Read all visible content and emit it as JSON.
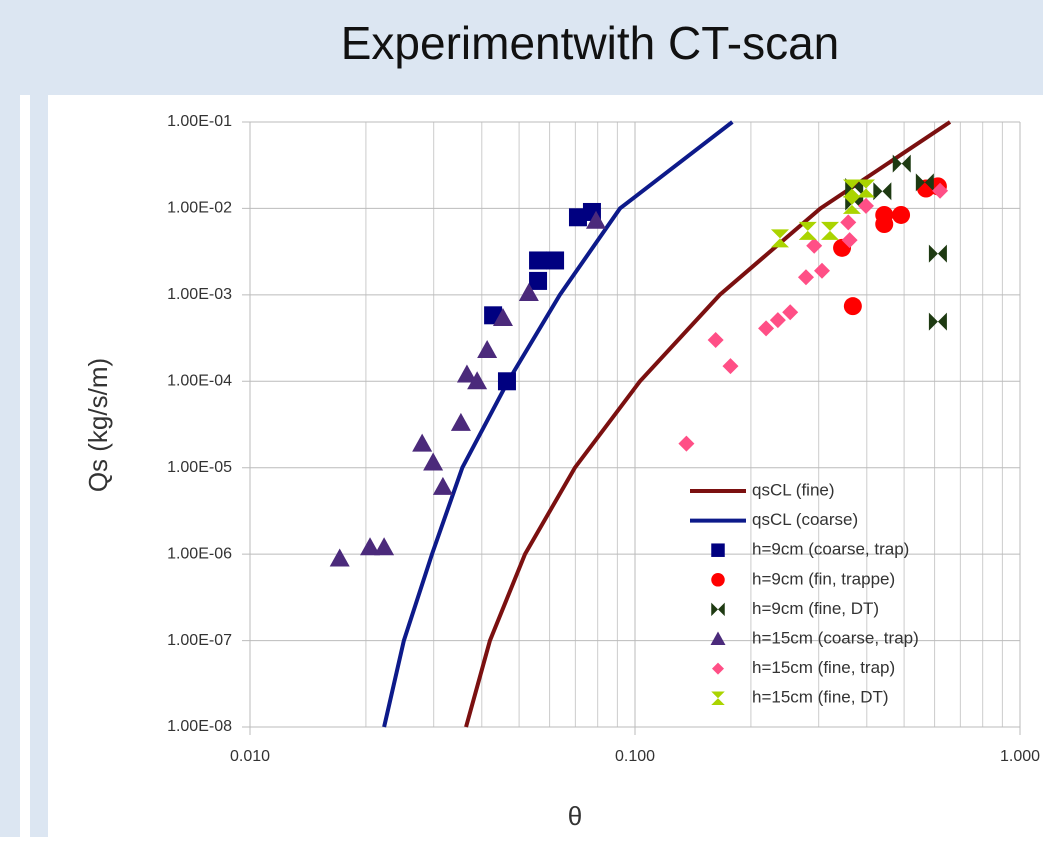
{
  "chart_data": {
    "type": "scatter",
    "title": "Experimentwith CT-scan",
    "xlabel": "θ",
    "ylabel": "Qs (kg/s/m)",
    "xscale": "log",
    "yscale": "log",
    "xlim": [
      0.01,
      1
    ],
    "ylim": [
      1e-08,
      0.1
    ],
    "xticks": [
      {
        "value": 0.01,
        "label": "0.010"
      },
      {
        "value": 0.1,
        "label": "0.100"
      },
      {
        "value": 1,
        "label": "1.000"
      }
    ],
    "yticks": [
      {
        "value": 1e-08,
        "label": "1.00E-08"
      },
      {
        "value": 1e-07,
        "label": "1.00E-07"
      },
      {
        "value": 1e-06,
        "label": "1.00E-06"
      },
      {
        "value": 1e-05,
        "label": "1.00E-05"
      },
      {
        "value": 0.0001,
        "label": "1.00E-04"
      },
      {
        "value": 0.001,
        "label": "1.00E-03"
      },
      {
        "value": 0.01,
        "label": "1.00E-02"
      },
      {
        "value": 0.1,
        "label": "1.00E-01"
      }
    ],
    "grid": true,
    "x_minor_grid": true,
    "legend": "lower right",
    "series": [
      {
        "name": "qsCL (fine)",
        "color": "#7b1010",
        "marker": "line",
        "x": [
          0.0364,
          0.042,
          0.0518,
          0.0698,
          0.103,
          0.166,
          0.303,
          0.658
        ],
        "values": [
          1e-08,
          1e-07,
          1e-06,
          1e-05,
          0.0001,
          0.001,
          0.01,
          0.1
        ]
      },
      {
        "name": "qsCL (coarse)",
        "color": "#0d1a8a",
        "marker": "line",
        "x": [
          0.0223,
          0.0251,
          0.0297,
          0.0356,
          0.0468,
          0.0638,
          0.0914,
          0.179
        ],
        "values": [
          1e-08,
          1e-07,
          1e-06,
          1e-05,
          0.0001,
          0.001,
          0.01,
          0.1
        ]
      },
      {
        "name": "h=9cm (coarse, trap)",
        "color": "#000080",
        "marker": "square",
        "x": [
          0.0711,
          0.0773,
          0.0428,
          0.0465,
          0.056,
          0.056,
          0.062
        ],
        "values": [
          0.0079,
          0.0091,
          0.00058,
          0.0001,
          0.00145,
          0.0025,
          0.0025
        ]
      },
      {
        "name": "h=9cm (fin, trappe)",
        "color": "#ff0000",
        "marker": "circle",
        "x": [
          0.368,
          0.345,
          0.444,
          0.444,
          0.491,
          0.57,
          0.612
        ],
        "values": [
          0.00074,
          0.0035,
          0.0066,
          0.0084,
          0.0084,
          0.017,
          0.018
        ]
      },
      {
        "name": "h=9cm (fine, DT)",
        "color": "#1e3a12",
        "marker": "bowtie",
        "x": [
          0.493,
          0.371,
          0.371,
          0.439,
          0.612,
          0.612,
          0.566
        ],
        "values": [
          0.033,
          0.0177,
          0.012,
          0.0158,
          0.003,
          0.00049,
          0.02
        ]
      },
      {
        "name": "h=15cm (coarse, trap)",
        "color": "#4b2a7b",
        "marker": "triangle",
        "x": [
          0.0171,
          0.0205,
          0.0223,
          0.028,
          0.0299,
          0.0317,
          0.0353,
          0.0366,
          0.0389,
          0.0413,
          0.0454,
          0.053,
          0.0792
        ],
        "values": [
          8.9e-07,
          1.2e-06,
          1.2e-06,
          1.9e-05,
          1.15e-05,
          6e-06,
          3.3e-05,
          0.00012,
          0.0001,
          0.00023,
          0.00054,
          0.00105,
          0.0072
        ]
      },
      {
        "name": "h=15cm (fine, trap)",
        "color": "#ff4f86",
        "marker": "diamond",
        "x": [
          0.136,
          0.162,
          0.177,
          0.219,
          0.235,
          0.253,
          0.278,
          0.306,
          0.292,
          0.361,
          0.358,
          0.398,
          0.62
        ],
        "values": [
          1.9e-05,
          0.0003,
          0.00015,
          0.00041,
          0.00051,
          0.00063,
          0.0016,
          0.0019,
          0.0037,
          0.0043,
          0.0069,
          0.0107,
          0.016
        ]
      },
      {
        "name": "h=15cm (fine, DT)",
        "color": "#aad400",
        "marker": "hourglass",
        "x": [
          0.238,
          0.281,
          0.321,
          0.366,
          0.398,
          0.366
        ],
        "values": [
          0.0045,
          0.0055,
          0.0055,
          0.011,
          0.017,
          0.017
        ]
      }
    ]
  }
}
